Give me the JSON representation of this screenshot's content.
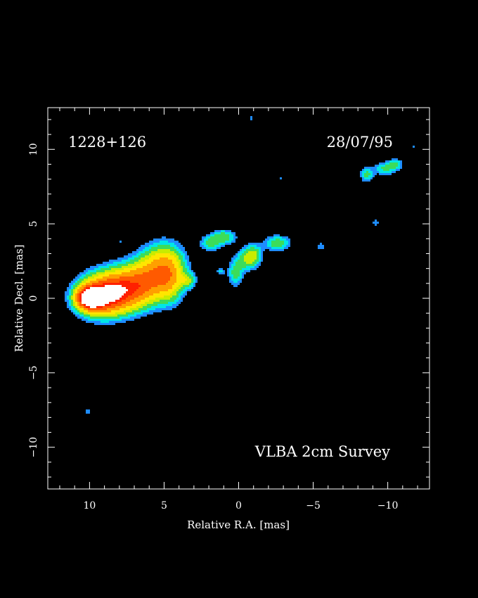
{
  "chart_data": {
    "type": "heatmap",
    "title": "",
    "xlabel": "Relative R.A. [mas]",
    "ylabel": "Relative Decl. [mas]",
    "xlim": [
      12.8,
      -12.8
    ],
    "ylim": [
      -12.8,
      12.8
    ],
    "x_reversed": true,
    "x_ticks": [
      10,
      5,
      0,
      -5,
      -10
    ],
    "x_tick_labels": [
      "10",
      "5",
      "0",
      "−5",
      "−10"
    ],
    "y_ticks": [
      10,
      5,
      0,
      -5,
      -10
    ],
    "y_tick_labels": [
      "10",
      "5",
      "0",
      "−5",
      "−10"
    ],
    "grid": false,
    "annotations": {
      "source": "1228+126",
      "date": "28/07/95",
      "survey": "VLBA 2cm Survey"
    },
    "colors": {
      "background": "#000000",
      "frame": "#ffffff",
      "level_1": "#1e8cff",
      "level_2": "#00e6e6",
      "level_3": "#3cdc5a",
      "level_4": "#c8ec00",
      "level_5": "#ffe600",
      "level_6": "#ffa000",
      "level_7": "#ff5a00",
      "level_8": "#ff2000",
      "peak": "#ffffff"
    },
    "components": [
      {
        "x": 10.0,
        "y": 0.0,
        "peak": 1.0,
        "sx": 0.55,
        "sy": 0.45
      },
      {
        "x": 9.3,
        "y": 0.1,
        "peak": 0.62,
        "sx": 1.0,
        "sy": 0.8
      },
      {
        "x": 8.3,
        "y": 0.4,
        "peak": 0.46,
        "sx": 1.2,
        "sy": 0.9
      },
      {
        "x": 7.2,
        "y": 0.8,
        "peak": 0.38,
        "sx": 1.1,
        "sy": 0.9
      },
      {
        "x": 6.0,
        "y": 1.3,
        "peak": 0.32,
        "sx": 0.9,
        "sy": 1.0
      },
      {
        "x": 5.0,
        "y": 2.2,
        "peak": 0.32,
        "sx": 0.9,
        "sy": 1.0
      },
      {
        "x": 4.6,
        "y": 1.2,
        "peak": 0.28,
        "sx": 0.6,
        "sy": 1.0
      },
      {
        "x": 3.4,
        "y": 1.2,
        "peak": 0.2,
        "sx": 0.35,
        "sy": 0.35
      },
      {
        "x": 1.9,
        "y": 3.7,
        "peak": 0.18,
        "sx": 0.45,
        "sy": 0.35
      },
      {
        "x": 1.0,
        "y": 4.1,
        "peak": 0.2,
        "sx": 0.55,
        "sy": 0.35
      },
      {
        "x": 1.2,
        "y": 1.8,
        "peak": 0.11,
        "sx": 0.2,
        "sy": 0.2
      },
      {
        "x": 0.2,
        "y": 1.7,
        "peak": 0.18,
        "sx": 0.35,
        "sy": 0.6
      },
      {
        "x": -0.6,
        "y": 2.6,
        "peak": 0.2,
        "sx": 0.5,
        "sy": 0.5
      },
      {
        "x": -1.0,
        "y": 3.0,
        "peak": 0.16,
        "sx": 0.4,
        "sy": 0.45
      },
      {
        "x": -2.6,
        "y": 3.7,
        "peak": 0.2,
        "sx": 0.6,
        "sy": 0.35
      },
      {
        "x": -5.5,
        "y": 3.5,
        "peak": 0.1,
        "sx": 0.2,
        "sy": 0.2
      },
      {
        "x": -8.6,
        "y": 8.3,
        "peak": 0.17,
        "sx": 0.3,
        "sy": 0.35
      },
      {
        "x": -9.8,
        "y": 8.7,
        "peak": 0.16,
        "sx": 0.5,
        "sy": 0.3
      },
      {
        "x": -10.5,
        "y": 9.0,
        "peak": 0.16,
        "sx": 0.35,
        "sy": 0.25
      },
      {
        "x": -9.2,
        "y": 5.1,
        "peak": 0.1,
        "sx": 0.15,
        "sy": 0.25
      },
      {
        "x": 7.9,
        "y": 3.8,
        "peak": 0.09,
        "sx": 0.08,
        "sy": 0.08
      },
      {
        "x": -0.8,
        "y": 12.1,
        "peak": 0.09,
        "sx": 0.08,
        "sy": 0.15
      },
      {
        "x": -2.8,
        "y": 8.0,
        "peak": 0.09,
        "sx": 0.08,
        "sy": 0.08
      },
      {
        "x": -11.8,
        "y": 10.2,
        "peak": 0.09,
        "sx": 0.08,
        "sy": 0.08
      },
      {
        "x": 10.1,
        "y": -7.6,
        "peak": 0.09,
        "sx": 0.2,
        "sy": 0.12
      }
    ]
  }
}
